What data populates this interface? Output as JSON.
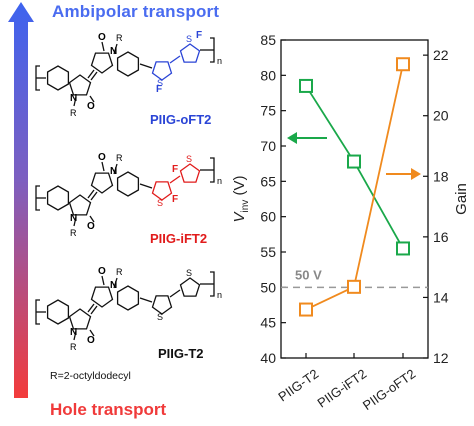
{
  "header": {
    "top_label": "Ambipolar transport",
    "bottom_label": "Hole transport"
  },
  "colors": {
    "top": "#4a6cf0",
    "bottom": "#f03a3a",
    "green": "#1aa84a",
    "orange": "#f08a1e",
    "red_f": "#e11b1b",
    "blue_f": "#2a44d6"
  },
  "polymers": [
    {
      "name": "PIIG-oFT2",
      "color": "#2a44d6"
    },
    {
      "name": "PIIG-iFT2",
      "color": "#e11b1b"
    },
    {
      "name": "PIIG-T2",
      "color": "#111111"
    }
  ],
  "side_chain": "R=2-octyldodecyl",
  "structure_text": {
    "O": "O",
    "N": "N",
    "R": "R",
    "F": "F",
    "n": "n"
  },
  "chart_data": {
    "type": "line",
    "categories": [
      "PIIG-T2",
      "PIIG-iFT2",
      "PIIG-oFT2"
    ],
    "ylabel_left": "V",
    "ylabel_left_sub": "inv",
    "ylabel_left_unit": "(V)",
    "ylabel_right": "Gain",
    "ylim_left": [
      40,
      85
    ],
    "ylim_right": [
      12,
      22.5
    ],
    "yticks_left": [
      "40",
      "45",
      "50",
      "55",
      "60",
      "65",
      "70",
      "75",
      "80",
      "85"
    ],
    "yticks_right": [
      "12",
      "14",
      "16",
      "18",
      "20",
      "22"
    ],
    "series": [
      {
        "axis": "left",
        "color": "#1aa84a",
        "values": [
          78.5,
          67.8,
          55.5
        ]
      },
      {
        "axis": "right",
        "color": "#f08a1e",
        "values": [
          13.6,
          14.35,
          21.7
        ]
      }
    ],
    "reference_line": {
      "value": 50,
      "label": "50 V"
    }
  }
}
